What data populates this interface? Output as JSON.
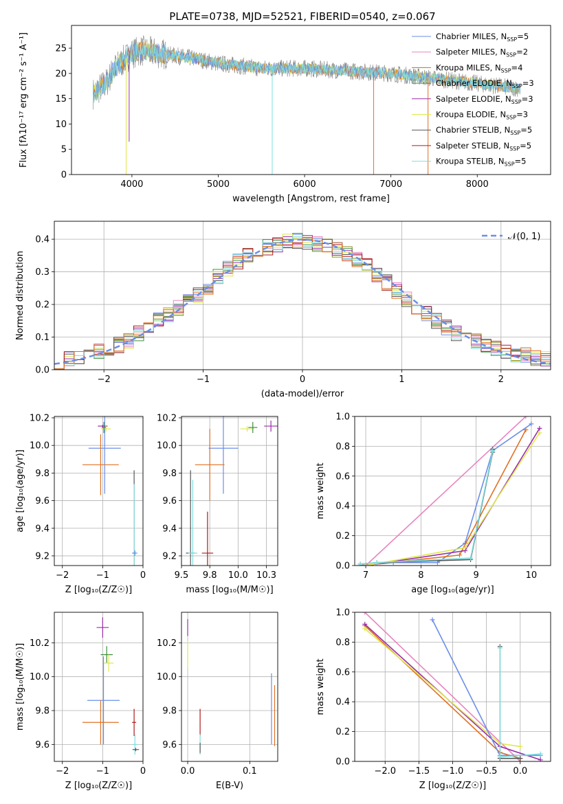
{
  "figure_title": "PLATE=0738, MJD=52521, FIBERID=0540, z=0.067",
  "model_colors": {
    "Chabrier MILES": "#6a8ee8",
    "Salpeter MILES": "#e884c0",
    "Kroupa MILES": "#8c8a1e",
    "Chabrier ELODIE": "#3d8f3d",
    "Salpeter ELODIE": "#9a2ca8",
    "Kroupa ELODIE": "#dde84a",
    "Chabrier STELIB": "#555555",
    "Salpeter STELIB": "#b01818",
    "Kroupa STELIB": "#7ddede",
    "data": "#808080",
    "highlight": "#e07022"
  },
  "chart_data": [
    {
      "id": "spectrum",
      "type": "line",
      "xlabel": "wavelength [Angstrom, rest frame]",
      "ylabel": "Flux [fλ10⁻¹⁷ erg cm⁻² s⁻¹ A⁻¹]",
      "xlim": [
        3300,
        8850
      ],
      "ylim": [
        0,
        29.5
      ],
      "xticks": [
        4000,
        5000,
        6000,
        7000,
        8000
      ],
      "yticks": [
        0,
        5,
        10,
        15,
        20,
        25
      ],
      "grid": false,
      "legend_position": "top-right",
      "legend": [
        "Chabrier MILES, N_SSP=5",
        "Salpeter MILES, N_SSP=2",
        "Kroupa MILES, N_SSP=4",
        "Chabrier ELODIE, N_SSP=3",
        "Salpeter ELODIE, N_SSP=3",
        "Kroupa ELODIE, N_SSP=3",
        "Chabrier STELIB, N_SSP=5",
        "Salpeter STELIB, N_SSP=5",
        "Kroupa STELIB, N_SSP=5"
      ],
      "continuum": {
        "x": [
          3550,
          3620,
          3700,
          3800,
          3900,
          4000,
          4100,
          4300,
          4500,
          4700,
          5000,
          5500,
          6000,
          6500,
          7000,
          7500,
          8000,
          8500
        ],
        "y": [
          16,
          17,
          18,
          21,
          22.5,
          24,
          24.5,
          24,
          23.5,
          23,
          22,
          21,
          21,
          20.5,
          20,
          19,
          18,
          17
        ]
      },
      "spikes": [
        {
          "x": 3933,
          "y": 0,
          "series": "Kroupa ELODIE"
        },
        {
          "x": 3968,
          "y": 6.5,
          "series": "Salpeter ELODIE"
        },
        {
          "x": 5625,
          "y": 0,
          "series": "Kroupa STELIB"
        },
        {
          "x": 6800,
          "y": 0,
          "series": "highlight"
        },
        {
          "x": 7430,
          "y": 0,
          "series": "highlight"
        }
      ]
    },
    {
      "id": "residuals",
      "type": "step",
      "xlabel": "(data-model)/error",
      "ylabel": "Normed distribution",
      "xlim": [
        -2.5,
        2.5
      ],
      "ylim": [
        0,
        0.455
      ],
      "xticks": [
        -2,
        -1,
        0,
        1,
        2
      ],
      "yticks": [
        0,
        0.1,
        0.2,
        0.3,
        0.4
      ],
      "grid": true,
      "legend_position": "top-right",
      "legend": [
        "𝒩(0, 1)"
      ],
      "bin_width": 0.1,
      "profile": {
        "x": [
          -2.5,
          -2.2,
          -2.0,
          -1.8,
          -1.5,
          -1.2,
          -1.0,
          -0.8,
          -0.6,
          -0.4,
          -0.2,
          0.0,
          0.2,
          0.4,
          0.6,
          0.8,
          1.0,
          1.2,
          1.5,
          1.8,
          2.0,
          2.2,
          2.5
        ],
        "y": [
          0.025,
          0.04,
          0.06,
          0.08,
          0.14,
          0.2,
          0.24,
          0.3,
          0.34,
          0.37,
          0.39,
          0.395,
          0.385,
          0.36,
          0.33,
          0.28,
          0.23,
          0.18,
          0.12,
          0.08,
          0.06,
          0.045,
          0.03
        ]
      }
    },
    {
      "id": "age-vs-metallicity",
      "type": "errorbar",
      "xlabel": "Z [log₁₀(Z/Z☉)]",
      "ylabel": "age  [log₁₀(age/yr)]",
      "xlim": [
        -2.2,
        0
      ],
      "ylim": [
        9.13,
        10.21
      ],
      "xticks": [
        -2,
        -1,
        0
      ],
      "yticks": [
        9.2,
        9.4,
        9.6,
        9.8,
        10.0,
        10.2
      ],
      "grid": true,
      "points": [
        {
          "series": "Chabrier MILES",
          "x": -0.95,
          "y": 9.98,
          "xerr": 0.4,
          "yerr": 0.33
        },
        {
          "series": "highlight",
          "x": -1.05,
          "y": 9.86,
          "xerr": 0.45,
          "yerr": 0.22
        },
        {
          "series": "Salpeter ELODIE",
          "x": -1.0,
          "y": 10.14,
          "xerr": 0.12,
          "yerr": 0.01
        },
        {
          "series": "Kroupa ELODIE",
          "x": -0.92,
          "y": 10.12,
          "xerr": 0.12,
          "yerr": 0.02
        },
        {
          "series": "Chabrier ELODIE",
          "x": -0.97,
          "y": 10.13,
          "xerr": 0.05,
          "yerr": 0.04
        },
        {
          "series": "Chabrier STELIB",
          "x": -0.22,
          "y": 9.22,
          "xerr": 0.05,
          "yerr": 0.6
        },
        {
          "series": "Kroupa STELIB",
          "x": -0.22,
          "y": 9.22,
          "xerr": 0.05,
          "yerr": 0.5
        },
        {
          "series": "Chabrier MILES",
          "x": -0.2,
          "y": 9.22,
          "xerr": 0.06,
          "yerr": 0.02
        }
      ]
    },
    {
      "id": "age-vs-mass",
      "type": "errorbar",
      "xlabel": "mass [log₁₀(M/M☉)]",
      "ylabel": "",
      "xlim": [
        9.5,
        10.35
      ],
      "ylim": [
        9.13,
        10.21
      ],
      "xticks": [
        9.5,
        9.75,
        10.0,
        10.25
      ],
      "yticks": [
        9.2,
        9.4,
        9.6,
        9.8,
        10.0,
        10.2
      ],
      "grid": true,
      "points": [
        {
          "series": "Chabrier MILES",
          "x": 9.87,
          "y": 9.98,
          "xerr": 0.13,
          "yerr": 0.33
        },
        {
          "series": "highlight",
          "x": 9.75,
          "y": 9.86,
          "xerr": 0.13,
          "yerr": 0.26
        },
        {
          "series": "Salpeter ELODIE",
          "x": 10.29,
          "y": 10.14,
          "xerr": 0.06,
          "yerr": 0.04
        },
        {
          "series": "Kroupa ELODIE",
          "x": 10.08,
          "y": 10.12,
          "xerr": 0.06,
          "yerr": 0.02
        },
        {
          "series": "Chabrier ELODIE",
          "x": 10.13,
          "y": 10.13,
          "xerr": 0.04,
          "yerr": 0.04
        },
        {
          "series": "Chabrier STELIB",
          "x": 9.58,
          "y": 9.22,
          "xerr": 0.04,
          "yerr": 0.6
        },
        {
          "series": "Kroupa STELIB",
          "x": 9.6,
          "y": 9.22,
          "xerr": 0.04,
          "yerr": 0.53
        },
        {
          "series": "Salpeter STELIB",
          "x": 9.73,
          "y": 9.22,
          "xerr": 0.05,
          "yerr": 0.3
        }
      ]
    },
    {
      "id": "weight-vs-age",
      "type": "line",
      "xlabel": "age  [log₁₀(age/yr)]",
      "ylabel": "mass weight",
      "xlim": [
        6.8,
        10.35
      ],
      "ylim": [
        0,
        1
      ],
      "xticks": [
        7,
        8,
        9,
        10
      ],
      "yticks": [
        0,
        0.2,
        0.4,
        0.6,
        0.8,
        1.0
      ],
      "grid": true,
      "series": [
        {
          "series": "Salpeter MILES",
          "x": [
            7.0,
            9.9
          ],
          "y": [
            0.0,
            1.0
          ]
        },
        {
          "series": "Chabrier MILES",
          "x": [
            6.9,
            7.5,
            8.3,
            8.8,
            9.3,
            10.0
          ],
          "y": [
            0.0,
            0.02,
            0.02,
            0.15,
            0.77,
            0.95
          ]
        },
        {
          "series": "highlight",
          "x": [
            6.95,
            8.7,
            9.9
          ],
          "y": [
            0.0,
            0.07,
            0.91
          ]
        },
        {
          "series": "Salpeter ELODIE",
          "x": [
            7.0,
            8.8,
            10.15
          ],
          "y": [
            0.0,
            0.1,
            0.92
          ]
        },
        {
          "series": "Kroupa ELODIE",
          "x": [
            7.0,
            8.8,
            10.15
          ],
          "y": [
            0.0,
            0.12,
            0.89
          ]
        },
        {
          "series": "Chabrier STELIB",
          "x": [
            6.9,
            7.2,
            8.9,
            9.3,
            9.3
          ],
          "y": [
            0.01,
            0.02,
            0.04,
            0.76,
            0.78
          ]
        },
        {
          "series": "Kroupa STELIB",
          "x": [
            6.9,
            7.2,
            8.9,
            9.3
          ],
          "y": [
            0.01,
            0.02,
            0.05,
            0.77
          ]
        }
      ]
    },
    {
      "id": "mass-vs-metallicity",
      "type": "errorbar",
      "xlabel": "Z [log₁₀(Z/Z☉)]",
      "ylabel": "mass [log₁₀(M/M☉)]",
      "xlim": [
        -2.2,
        0
      ],
      "ylim": [
        9.5,
        10.38
      ],
      "xticks": [
        -2,
        -1,
        0
      ],
      "yticks": [
        9.6,
        9.8,
        10.0,
        10.2
      ],
      "grid": true,
      "points": [
        {
          "series": "Salpeter ELODIE",
          "x": -1.0,
          "y": 10.29,
          "xerr": 0.15,
          "yerr": 0.06
        },
        {
          "series": "Chabrier ELODIE",
          "x": -0.9,
          "y": 10.13,
          "xerr": 0.15,
          "yerr": 0.05
        },
        {
          "series": "Kroupa ELODIE",
          "x": -0.85,
          "y": 10.08,
          "xerr": 0.12,
          "yerr": 0.05
        },
        {
          "series": "Chabrier MILES",
          "x": -0.98,
          "y": 9.86,
          "xerr": 0.4,
          "yerr": 0.26
        },
        {
          "series": "highlight",
          "x": -1.05,
          "y": 9.73,
          "xerr": 0.45,
          "yerr": 0.13
        },
        {
          "series": "Salpeter STELIB",
          "x": -0.22,
          "y": 9.73,
          "xerr": 0.05,
          "yerr": 0.08
        },
        {
          "series": "Kroupa STELIB",
          "x": -0.2,
          "y": 9.6,
          "xerr": 0.06,
          "yerr": 0.06
        },
        {
          "series": "Chabrier STELIB",
          "x": -0.18,
          "y": 9.57,
          "xerr": 0.08,
          "yerr": 0.01
        }
      ]
    },
    {
      "id": "mass-vs-extinction",
      "type": "errorbar",
      "xlabel": "E(B-V)",
      "ylabel": "",
      "xlim": [
        -0.01,
        0.145
      ],
      "ylim": [
        9.5,
        10.38
      ],
      "xticks": [
        0.0,
        0.1
      ],
      "yticks": [
        9.6,
        9.8,
        10.0,
        10.2
      ],
      "grid": true,
      "points": [
        {
          "series": "Salpeter ELODIE",
          "x": 0.0,
          "y": 10.29,
          "xerr": 0,
          "yerr": 0.05
        },
        {
          "series": "Kroupa ELODIE",
          "x": 0.0,
          "y": 10.13,
          "xerr": 0,
          "yerr": 0.08
        },
        {
          "series": "Salpeter STELIB",
          "x": 0.02,
          "y": 9.73,
          "xerr": 0,
          "yerr": 0.08
        },
        {
          "series": "Kroupa STELIB",
          "x": 0.02,
          "y": 9.6,
          "xerr": 0,
          "yerr": 0.06
        },
        {
          "series": "Chabrier STELIB",
          "x": 0.02,
          "y": 9.58,
          "xerr": 0,
          "yerr": 0.03
        },
        {
          "series": "Chabrier MILES",
          "x": 0.135,
          "y": 9.81,
          "xerr": 0,
          "yerr": 0.21
        },
        {
          "series": "highlight",
          "x": 0.14,
          "y": 9.77,
          "xerr": 0,
          "yerr": 0.18
        }
      ]
    },
    {
      "id": "weight-vs-metallicity",
      "type": "line",
      "xlabel": "Z [log₁₀(Z/Z☉)]",
      "ylabel": "mass weight",
      "xlim": [
        -2.45,
        0.45
      ],
      "ylim": [
        0,
        1
      ],
      "xticks": [
        -2.0,
        -1.5,
        -1.0,
        -0.5,
        0.0
      ],
      "yticks": [
        0,
        0.2,
        0.4,
        0.6,
        0.8,
        1.0
      ],
      "grid": true,
      "series": [
        {
          "series": "Salpeter MILES",
          "x": [
            -2.3,
            0.0
          ],
          "y": [
            1.0,
            0.0
          ]
        },
        {
          "series": "highlight",
          "x": [
            -2.3,
            -0.3,
            0.0
          ],
          "y": [
            0.91,
            0.06,
            0.02
          ]
        },
        {
          "series": "Salpeter ELODIE",
          "x": [
            -2.3,
            -0.3,
            0.3
          ],
          "y": [
            0.92,
            0.1,
            0.01
          ]
        },
        {
          "series": "Kroupa ELODIE",
          "x": [
            -2.3,
            -0.3,
            0.0
          ],
          "y": [
            0.89,
            0.12,
            0.1
          ]
        },
        {
          "series": "Chabrier MILES",
          "x": [
            -1.3,
            -0.3,
            0.3
          ],
          "y": [
            0.95,
            0.04,
            0.04
          ]
        },
        {
          "series": "Chabrier STELIB",
          "x": [
            -0.3,
            -0.3,
            0.0
          ],
          "y": [
            0.77,
            0.02,
            0.02
          ]
        },
        {
          "series": "Kroupa STELIB",
          "x": [
            -0.3,
            -0.3,
            0.3
          ],
          "y": [
            0.76,
            0.03,
            0.05
          ]
        }
      ]
    }
  ]
}
